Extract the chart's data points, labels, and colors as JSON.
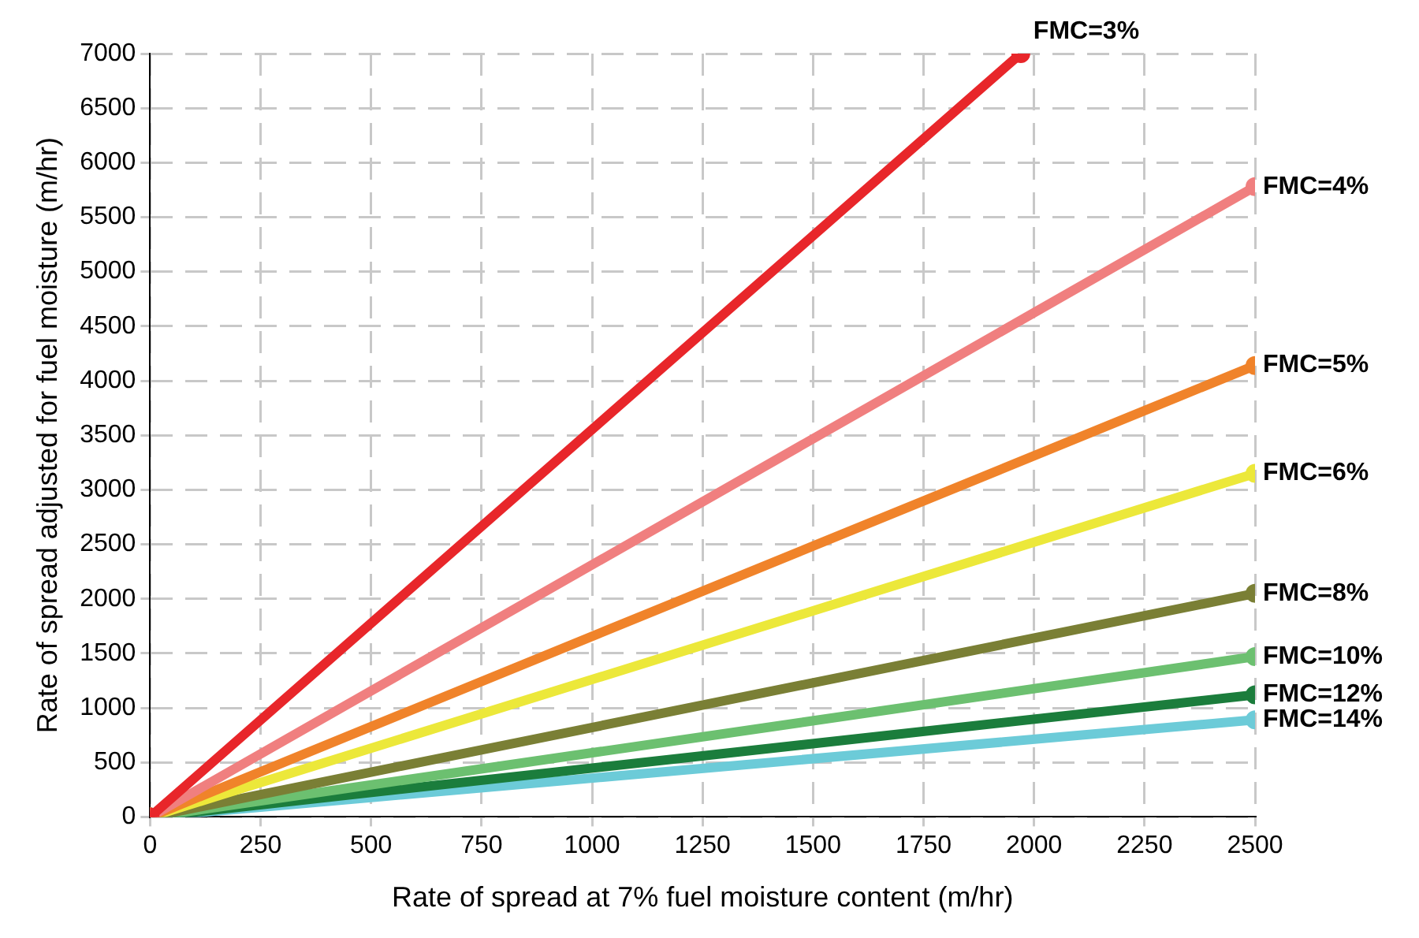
{
  "chart_data": {
    "type": "line",
    "xlabel": "Rate of spread at 7% fuel moisture content (m/hr)",
    "ylabel": "Rate of spread adjusted for fuel moisture (m/hr)",
    "xlim": [
      0,
      2500
    ],
    "xticks": [
      0,
      250,
      500,
      750,
      1000,
      1250,
      1500,
      1750,
      2000,
      2250,
      2500
    ],
    "ylim": [
      0,
      7000
    ],
    "yticks": [
      0,
      500,
      1000,
      1500,
      2000,
      2500,
      3000,
      3500,
      4000,
      4500,
      5000,
      5500,
      6000,
      6500,
      7000
    ],
    "grid": true,
    "legend": false,
    "marker": "circle",
    "line_style": "solid",
    "series": [
      {
        "name": "FMC=3%",
        "color": "#e8262a",
        "x": [
          0,
          1970
        ],
        "values": [
          0,
          7000
        ]
      },
      {
        "name": "FMC=4%",
        "color": "#f07f7f",
        "x": [
          0,
          2500
        ],
        "values": [
          0,
          5780
        ]
      },
      {
        "name": "FMC=5%",
        "color": "#f0832a",
        "x": [
          0,
          2500
        ],
        "values": [
          0,
          4140
        ]
      },
      {
        "name": "FMC=6%",
        "color": "#ece83a",
        "x": [
          0,
          2500
        ],
        "values": [
          0,
          3150
        ]
      },
      {
        "name": "FMC=8%",
        "color": "#7a7f35",
        "x": [
          0,
          2500
        ],
        "values": [
          0,
          2050
        ]
      },
      {
        "name": "FMC=10%",
        "color": "#6cc070",
        "x": [
          0,
          2500
        ],
        "values": [
          0,
          1470
        ]
      },
      {
        "name": "FMC=12%",
        "color": "#1b7d3c",
        "x": [
          0,
          2500
        ],
        "values": [
          0,
          1120
        ]
      },
      {
        "name": "FMC=14%",
        "color": "#6ccbd8",
        "x": [
          0,
          2500
        ],
        "values": [
          0,
          890
        ]
      }
    ]
  }
}
